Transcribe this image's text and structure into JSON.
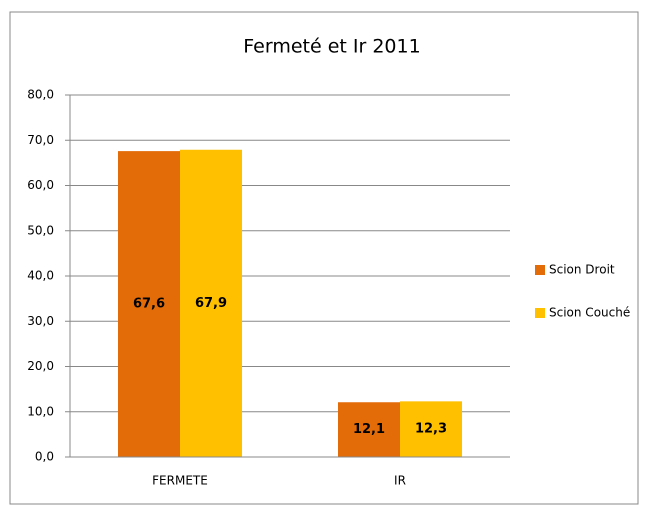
{
  "chart_data": {
    "type": "bar",
    "title": "Fermeté et Ir 2011",
    "categories": [
      "FERMETE",
      "IR"
    ],
    "series": [
      {
        "name": "Scion Droit",
        "color": "#e36c09",
        "values": [
          67.6,
          12.1
        ],
        "value_labels": [
          "67,6",
          "12,1"
        ]
      },
      {
        "name": "Scion Couché",
        "color": "#ffc000",
        "values": [
          67.9,
          12.3
        ],
        "value_labels": [
          "67,9",
          "12,3"
        ]
      }
    ],
    "ylim": [
      0,
      80
    ],
    "yticks": [
      {
        "value": 0,
        "label": "0,0"
      },
      {
        "value": 10,
        "label": "10,0"
      },
      {
        "value": 20,
        "label": "20,0"
      },
      {
        "value": 30,
        "label": "30,0"
      },
      {
        "value": 40,
        "label": "40,0"
      },
      {
        "value": 50,
        "label": "50,0"
      },
      {
        "value": 60,
        "label": "60,0"
      },
      {
        "value": 70,
        "label": "70,0"
      },
      {
        "value": 80,
        "label": "80,0"
      }
    ],
    "grid": true,
    "legend": "right"
  }
}
